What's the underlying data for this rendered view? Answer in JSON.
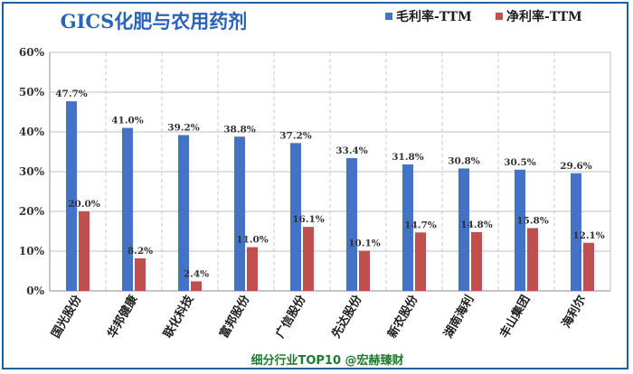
{
  "chart_data": {
    "type": "bar",
    "title": "GICS化肥与农用药剂",
    "categories": [
      "国光股份",
      "华邦健康",
      "联化科技",
      "富邦股份",
      "广信股份",
      "先达股份",
      "新农股份",
      "湖南海利",
      "丰山集团",
      "海利尔"
    ],
    "series": [
      {
        "name": "毛利率-TTM",
        "color": "#4472c4",
        "values": [
          47.7,
          41.0,
          39.2,
          38.8,
          37.2,
          33.4,
          31.8,
          30.8,
          30.5,
          29.6
        ],
        "labels": [
          "47.7%",
          "41.0%",
          "39.2%",
          "38.8%",
          "37.2%",
          "33.4%",
          "31.8%",
          "30.8%",
          "30.5%",
          "29.6%"
        ]
      },
      {
        "name": "净利率-TTM",
        "color": "#c0504d",
        "values": [
          20.0,
          8.2,
          2.4,
          11.0,
          16.1,
          10.1,
          14.7,
          14.8,
          15.8,
          12.1
        ],
        "labels": [
          "20.0%",
          "8.2%",
          "2.4%",
          "11.0%",
          "16.1%",
          "10.1%",
          "14.7%",
          "14.8%",
          "15.8%",
          "12.1%"
        ]
      }
    ],
    "ylim": [
      0,
      60
    ],
    "yticks": [
      "0%",
      "10%",
      "20%",
      "30%",
      "40%",
      "50%",
      "60%"
    ],
    "grid": true,
    "legend_position": "top-right"
  },
  "footer": "细分行业TOP10 @宏赫臻财"
}
